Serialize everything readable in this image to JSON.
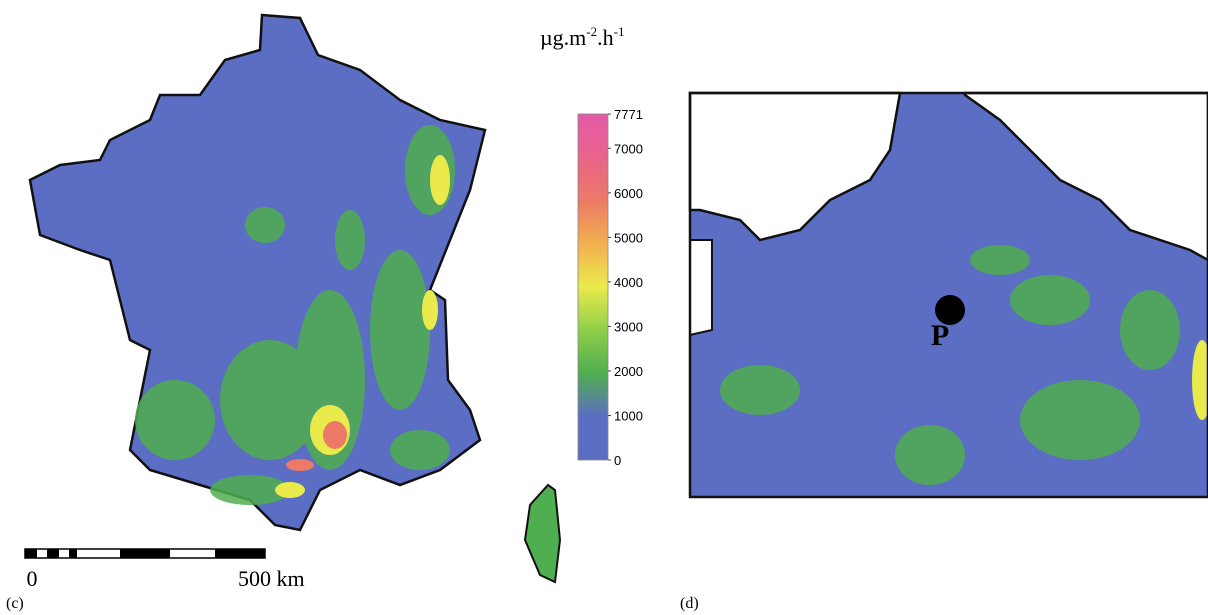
{
  "unit": {
    "base1": "µg.m",
    "sup1": "-2",
    "base2": ".h",
    "sup2": "-1"
  },
  "colorbar": {
    "lim": [
      0,
      7771
    ],
    "ticks": [
      0,
      1000,
      2000,
      3000,
      4000,
      5000,
      6000,
      7000,
      7771
    ],
    "colors": [
      "#5b6ec4",
      "#5b6ec4",
      "#4fae4f",
      "#8fcf4a",
      "#eaea4c",
      "#f2b050",
      "#ec7a66",
      "#e8648a",
      "#e45aa8"
    ]
  },
  "scale_bar": {
    "start": "0",
    "end": "500 km"
  },
  "panels": {
    "left": "(c)",
    "right": "(d)"
  },
  "marker": "P"
}
